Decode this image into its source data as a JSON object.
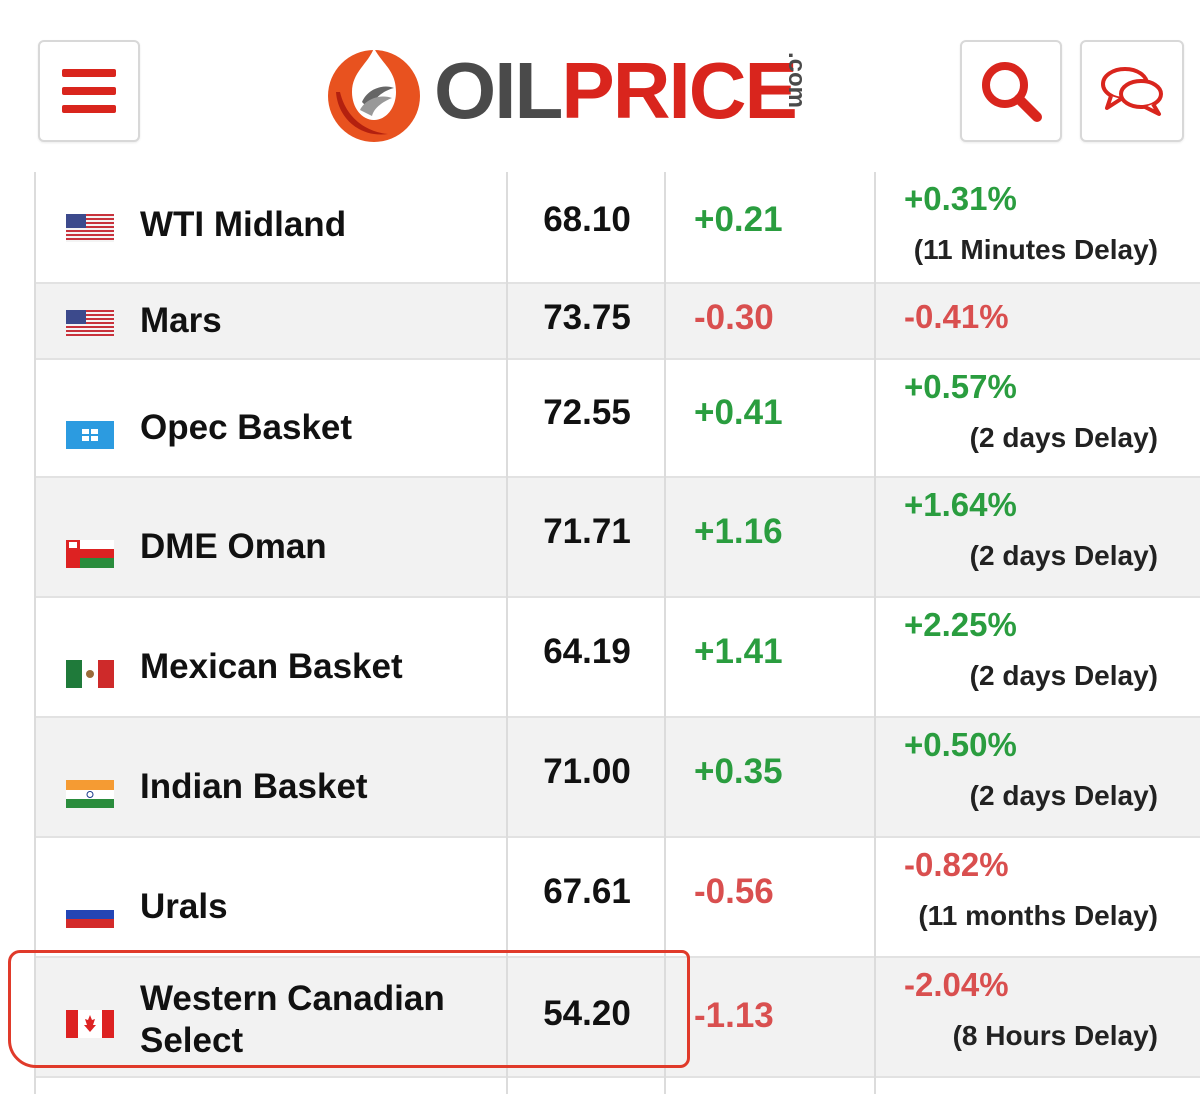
{
  "header": {
    "logo_main": "OILPRICE",
    "logo_suffix": ".com",
    "menu_icon": "hamburger-menu-icon",
    "search_icon": "search-icon",
    "chat_icon": "chat-bubbles-icon",
    "accent_color": "#d9251d"
  },
  "rows": [
    {
      "name": "WTI Midland",
      "flag": "us-flag-icon",
      "price": "68.10",
      "change": "+0.21",
      "pct": "+0.31%",
      "delay": "(11 Minutes Delay)",
      "dir": "pos"
    },
    {
      "name": "Mars",
      "flag": "us-flag-icon",
      "price": "73.75",
      "change": "-0.30",
      "pct": "-0.41%",
      "delay": "",
      "dir": "neg"
    },
    {
      "name": "Opec Basket",
      "flag": "opec-flag-icon",
      "price": "72.55",
      "change": "+0.41",
      "pct": "+0.57%",
      "delay": "(2 days Delay)",
      "dir": "pos"
    },
    {
      "name": "DME Oman",
      "flag": "oman-flag-icon",
      "price": "71.71",
      "change": "+1.16",
      "pct": "+1.64%",
      "delay": "(2 days Delay)",
      "dir": "pos"
    },
    {
      "name": "Mexican Basket",
      "flag": "mexico-flag-icon",
      "price": "64.19",
      "change": "+1.41",
      "pct": "+2.25%",
      "delay": "(2 days Delay)",
      "dir": "pos"
    },
    {
      "name": "Indian Basket",
      "flag": "india-flag-icon",
      "price": "71.00",
      "change": "+0.35",
      "pct": "+0.50%",
      "delay": "(2 days Delay)",
      "dir": "pos"
    },
    {
      "name": "Urals",
      "flag": "russia-flag-icon",
      "price": "67.61",
      "change": "-0.56",
      "pct": "-0.82%",
      "delay": "(11 months Delay)",
      "dir": "neg"
    },
    {
      "name_line1": "Western Canadian",
      "name_line2": "Select",
      "flag": "canada-flag-icon",
      "price": "54.20",
      "change": "-1.13",
      "pct": "-2.04%",
      "delay": "(8 Hours Delay)",
      "dir": "neg"
    }
  ]
}
